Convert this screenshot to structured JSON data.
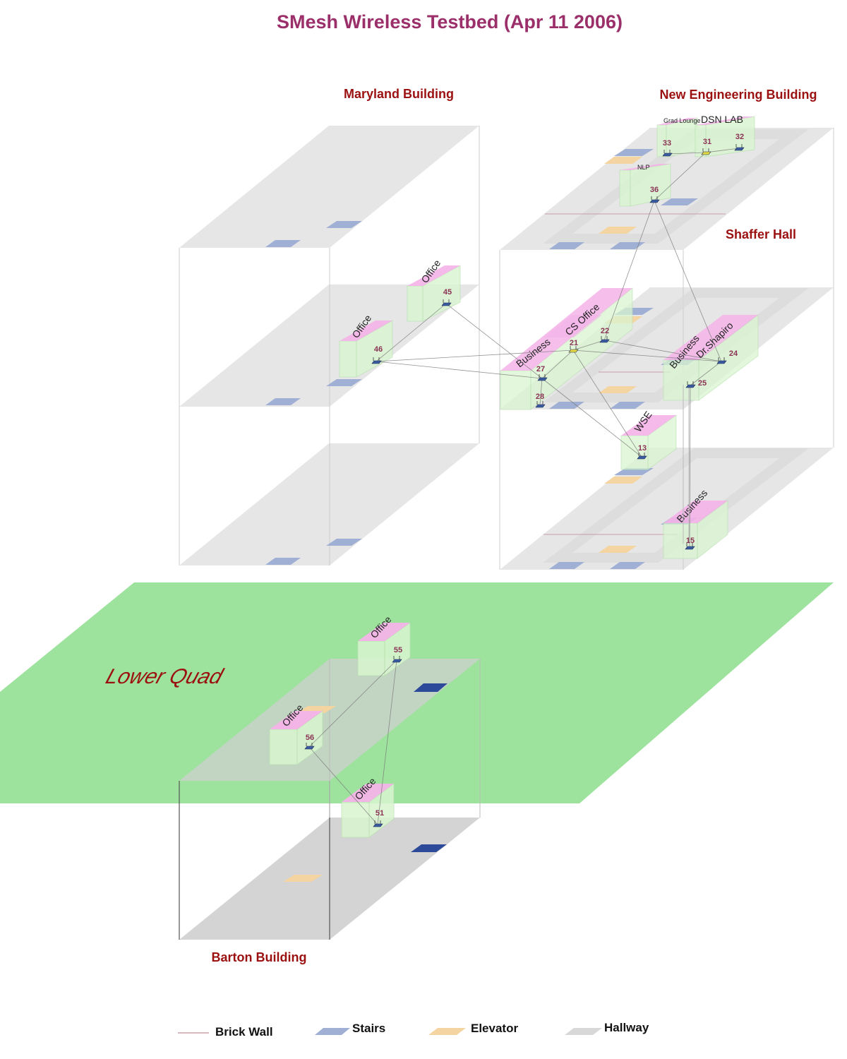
{
  "title": "SMesh Wireless Testbed (Apr 11 2006)",
  "colors": {
    "title": "#9b2f6a",
    "building_label": "#9b1010",
    "node_label": "#8a3355",
    "floor": "#e6e6e6",
    "barton_floor": "#cfcfcf",
    "stairs": "#9fb0d4",
    "stairs_dark": "#2d4a9a",
    "elevator": "#f4d4a0",
    "hallway": "#d8d8d8",
    "room_wall": "#d9f5d0",
    "room_top": "#f4b3e8",
    "quad": "#9de39d",
    "link": "#777777",
    "brick_wall": "#c8a0a8"
  },
  "buildings": {
    "maryland": "Maryland Building",
    "new_engineering": "New Engineering Building",
    "shaffer": "Shaffer Hall",
    "barton": "Barton Building"
  },
  "quad_label": "Lower Quad",
  "rooms": {
    "grad_lounge": "Grad Lounge",
    "dsn_lab": "DSN LAB",
    "nlp": "NLP",
    "office": "Office",
    "cs_office": "CS Office",
    "business": "Business",
    "dr_shapiro": "Dr.Shapiro",
    "wse": "WSE"
  },
  "nodes": [
    "33",
    "31",
    "32",
    "36",
    "45",
    "46",
    "21",
    "22",
    "27",
    "28",
    "24",
    "25",
    "13",
    "15",
    "55",
    "56",
    "51"
  ],
  "links": [
    [
      "33",
      "31"
    ],
    [
      "31",
      "32"
    ],
    [
      "31",
      "36"
    ],
    [
      "36",
      "22"
    ],
    [
      "36",
      "24"
    ],
    [
      "45",
      "46"
    ],
    [
      "45",
      "27"
    ],
    [
      "46",
      "21"
    ],
    [
      "46",
      "27"
    ],
    [
      "21",
      "27"
    ],
    [
      "21",
      "22"
    ],
    [
      "21",
      "24"
    ],
    [
      "21",
      "13"
    ],
    [
      "22",
      "24"
    ],
    [
      "27",
      "28"
    ],
    [
      "27",
      "13"
    ],
    [
      "24",
      "25"
    ],
    [
      "25",
      "15"
    ],
    [
      "55",
      "56"
    ],
    [
      "55",
      "51"
    ],
    [
      "56",
      "51"
    ]
  ],
  "legend": {
    "brick_wall": "Brick Wall",
    "stairs": "Stairs",
    "elevator": "Elevator",
    "hallway": "Hallway"
  }
}
